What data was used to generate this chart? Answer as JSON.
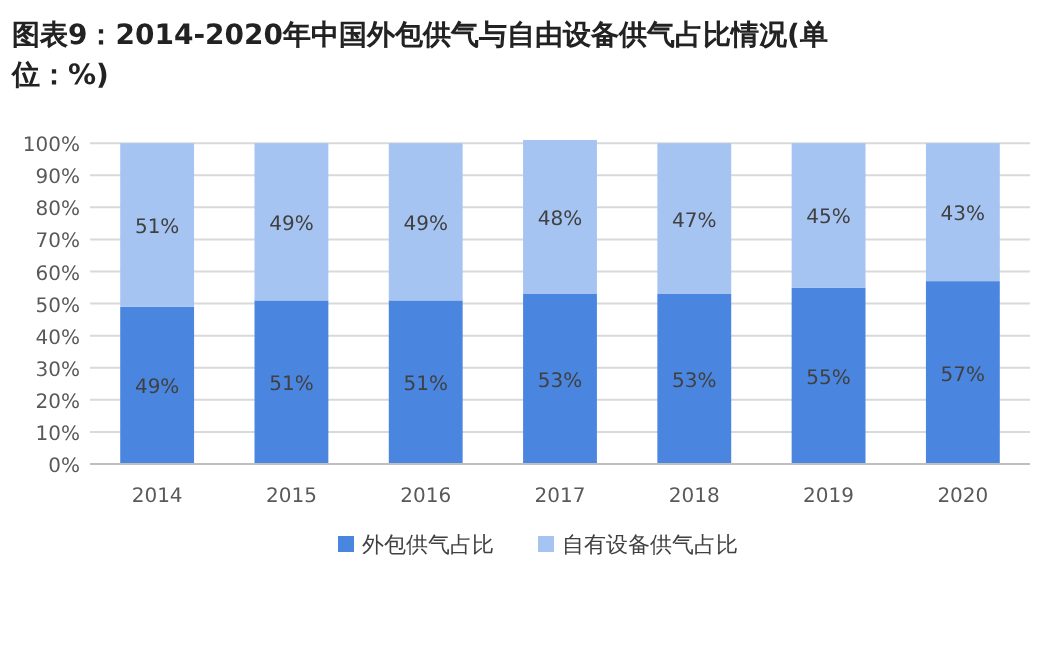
{
  "chart_data": {
    "type": "bar",
    "stacked": true,
    "title": "图表9：2014-2020年中国外包供气与自由设备供气占比情况(单位：%)",
    "categories": [
      "2014",
      "2015",
      "2016",
      "2017",
      "2018",
      "2019",
      "2020"
    ],
    "series": [
      {
        "name": "外包供气占比",
        "color": "#4a86e0",
        "values": [
          49,
          51,
          51,
          53,
          53,
          55,
          57
        ],
        "value_labels": [
          "49%",
          "51%",
          "51%",
          "53%",
          "53%",
          "55%",
          "57%"
        ]
      },
      {
        "name": "自有设备供气占比",
        "color": "#a6c4f2",
        "values": [
          51,
          49,
          49,
          48,
          47,
          45,
          43
        ],
        "value_labels": [
          "51%",
          "49%",
          "49%",
          "48%",
          "47%",
          "45%",
          "43%"
        ]
      }
    ],
    "ylim": [
      0,
      101
    ],
    "yticks": [
      {
        "value": 0,
        "label": "0%"
      },
      {
        "value": 10,
        "label": "10%"
      },
      {
        "value": 20,
        "label": "20%"
      },
      {
        "value": 30,
        "label": "30%"
      },
      {
        "value": 40,
        "label": "40%"
      },
      {
        "value": 50,
        "label": "50%"
      },
      {
        "value": 60,
        "label": "60%"
      },
      {
        "value": 70,
        "label": "70%"
      },
      {
        "value": 80,
        "label": "80%"
      },
      {
        "value": 90,
        "label": "90%"
      },
      {
        "value": 100,
        "label": "100%"
      }
    ],
    "grid": "y",
    "legend": "bottom"
  }
}
